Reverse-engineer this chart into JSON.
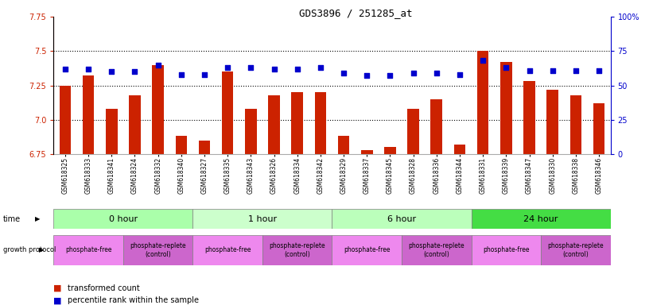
{
  "title": "GDS3896 / 251285_at",
  "samples": [
    "GSM618325",
    "GSM618333",
    "GSM618341",
    "GSM618324",
    "GSM618332",
    "GSM618340",
    "GSM618327",
    "GSM618335",
    "GSM618343",
    "GSM618326",
    "GSM618334",
    "GSM618342",
    "GSM618329",
    "GSM618337",
    "GSM618345",
    "GSM618328",
    "GSM618336",
    "GSM618344",
    "GSM618331",
    "GSM618339",
    "GSM618347",
    "GSM618330",
    "GSM618338",
    "GSM618346"
  ],
  "transformed_count": [
    7.25,
    7.32,
    7.08,
    7.18,
    7.4,
    6.88,
    6.85,
    7.35,
    7.08,
    7.18,
    7.2,
    7.2,
    6.88,
    6.78,
    6.8,
    7.08,
    7.15,
    6.82,
    7.5,
    7.42,
    7.28,
    7.22,
    7.18,
    7.12
  ],
  "percentile_rank": [
    62,
    62,
    60,
    60,
    65,
    58,
    58,
    63,
    63,
    62,
    62,
    63,
    59,
    57,
    57,
    59,
    59,
    58,
    68,
    63,
    61,
    61,
    61,
    61
  ],
  "ylim_left": [
    6.75,
    7.75
  ],
  "ylim_right": [
    0,
    100
  ],
  "yticks_left": [
    6.75,
    7.0,
    7.25,
    7.5,
    7.75
  ],
  "yticks_right": [
    0,
    25,
    50,
    75,
    100
  ],
  "ytick_labels_right": [
    "0",
    "25",
    "50",
    "75",
    "100%"
  ],
  "bar_color": "#cc2200",
  "dot_color": "#0000cc",
  "time_groups": [
    {
      "label": "0 hour",
      "start": 0,
      "end": 6,
      "color": "#aaffaa"
    },
    {
      "label": "1 hour",
      "start": 6,
      "end": 12,
      "color": "#ccffcc"
    },
    {
      "label": "6 hour",
      "start": 12,
      "end": 18,
      "color": "#bbffbb"
    },
    {
      "label": "24 hour",
      "start": 18,
      "end": 24,
      "color": "#44dd44"
    }
  ],
  "protocol_groups": [
    {
      "label": "phosphate-free",
      "start": 0,
      "end": 3,
      "color": "#ee88ee"
    },
    {
      "label": "phosphate-replete\n(control)",
      "start": 3,
      "end": 6,
      "color": "#cc66cc"
    },
    {
      "label": "phosphate-free",
      "start": 6,
      "end": 9,
      "color": "#ee88ee"
    },
    {
      "label": "phosphate-replete\n(control)",
      "start": 9,
      "end": 12,
      "color": "#cc66cc"
    },
    {
      "label": "phosphate-free",
      "start": 12,
      "end": 15,
      "color": "#ee88ee"
    },
    {
      "label": "phosphate-replete\n(control)",
      "start": 15,
      "end": 18,
      "color": "#cc66cc"
    },
    {
      "label": "phosphate-free",
      "start": 18,
      "end": 21,
      "color": "#ee88ee"
    },
    {
      "label": "phosphate-replete\n(control)",
      "start": 21,
      "end": 24,
      "color": "#cc66cc"
    }
  ],
  "background_color": "#ffffff",
  "axis_left_color": "#cc2200",
  "axis_right_color": "#0000cc",
  "n_samples": 24
}
